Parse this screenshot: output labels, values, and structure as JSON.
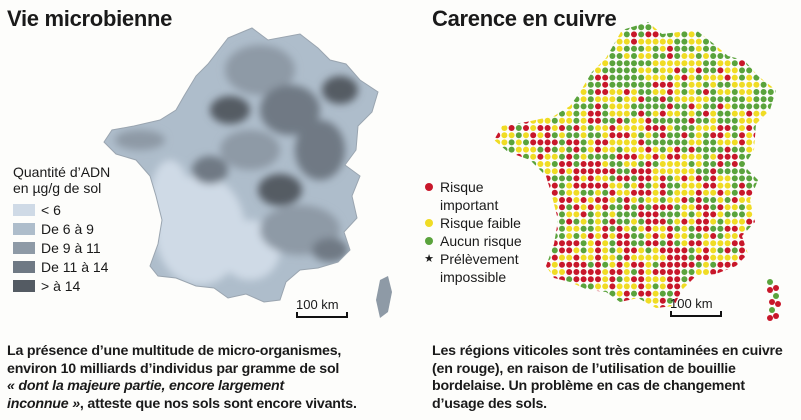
{
  "left": {
    "title": "Vie microbienne",
    "legend": {
      "title_line1": "Quantité d’ADN",
      "title_line2": "en µg/g de sol",
      "items": [
        {
          "label": "< 6",
          "color": "#cfdae6"
        },
        {
          "label": "De 6 à 9",
          "color": "#aebdcb"
        },
        {
          "label": "De 9 à 11",
          "color": "#8e9aa6"
        },
        {
          "label": "De 11 à 14",
          "color": "#6f7984"
        },
        {
          "label": "> à 14",
          "color": "#545b63"
        }
      ]
    },
    "scale_label": "100 km",
    "caption": {
      "line1": "La présence d’une multitude de micro-organismes,",
      "line2": "environ 10 milliards d’individus par gramme de sol",
      "line3_quote": "« dont la majeure partie, encore largement",
      "line4_quote": "inconnue »",
      "line4_rest": ", atteste que nos sols sont encore vivants."
    }
  },
  "right": {
    "title": "Carence en cuivre",
    "legend": {
      "items": [
        {
          "label_line1": "Risque",
          "label_line2": "important",
          "color": "#c8172a",
          "symbol": "dot"
        },
        {
          "label_line1": "Risque faible",
          "label_line2": "",
          "color": "#f0dc24",
          "symbol": "dot"
        },
        {
          "label_line1": "Aucun risque",
          "label_line2": "",
          "color": "#5aa33c",
          "symbol": "dot"
        },
        {
          "label_line1": "Prélèvement",
          "label_line2": "impossible",
          "color": "#111111",
          "symbol": "★"
        }
      ]
    },
    "scale_label": "100 km",
    "caption": {
      "line1": "Les régions viticoles sont très contaminées en cuivre",
      "line2": "(en rouge), en raison de l’utilisation de bouillie",
      "line3": "bordelaise. Un problème en cas de changement",
      "line4": "d’usage des sols."
    }
  }
}
